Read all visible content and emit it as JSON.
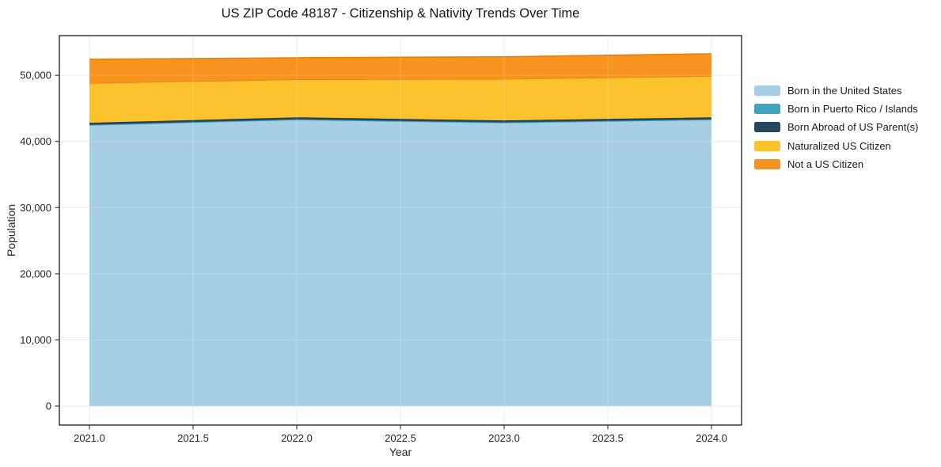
{
  "chart": {
    "title": "US ZIP Code 48187 - Citizenship & Nativity Trends Over Time",
    "xlabel": "Year",
    "ylabel": "Population",
    "chart_data": {
      "type": "area",
      "stacked": true,
      "x": [
        2021,
        2022,
        2023,
        2024
      ],
      "series": [
        {
          "name": "Born in the United States",
          "color": "#A6CFE5",
          "edge": "#8FBEDC",
          "values": [
            42400,
            43230,
            42760,
            43230
          ]
        },
        {
          "name": "Born in Puerto Rico / Islands",
          "color": "#3FA4BE",
          "edge": "#2E8FA8",
          "values": [
            120,
            120,
            120,
            120
          ]
        },
        {
          "name": "Born Abroad of US Parent(s)",
          "color": "#26485C",
          "edge": "#1E3A4A",
          "values": [
            300,
            300,
            300,
            300
          ]
        },
        {
          "name": "Naturalized US Citizen",
          "color": "#FDC32F",
          "edge": "#E08214",
          "values": [
            6000,
            5750,
            6270,
            6250
          ]
        },
        {
          "name": "Not a US Citizen",
          "color": "#F8941E",
          "edge": "#E0800D",
          "values": [
            3600,
            3250,
            3350,
            3350
          ]
        }
      ],
      "xticks": [
        2021.0,
        2021.5,
        2022.0,
        2022.5,
        2023.0,
        2023.5,
        2024.0
      ],
      "xtick_labels": [
        "2021.0",
        "2021.5",
        "2022.0",
        "2022.5",
        "2023.0",
        "2023.5",
        "2024.0"
      ],
      "yticks": [
        0,
        10000,
        20000,
        30000,
        40000,
        50000
      ],
      "ytick_labels": [
        "0",
        "10,000",
        "20,000",
        "30,000",
        "40,000",
        "50,000"
      ],
      "xlim": [
        2020.855,
        2024.145
      ],
      "ylim": [
        -2870,
        56000
      ],
      "grid": true,
      "grid_color": "#e6e6e6",
      "spine_color": "#1a1a1a",
      "tick_color": "#333333",
      "text_color": "#262626",
      "legend_position": "right-outside"
    }
  }
}
